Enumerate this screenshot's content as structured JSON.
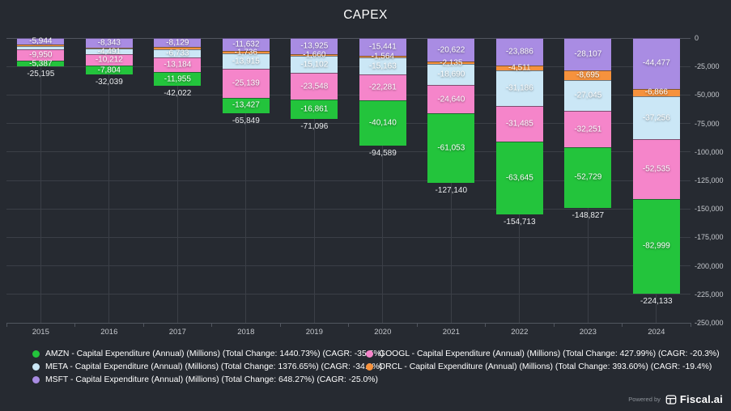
{
  "title": "CAPEX",
  "colors": {
    "background": "#262a31",
    "grid": "#3b3f47",
    "axis": "#51565f",
    "tick_text": "#c6c9ce",
    "segment_text": "#ffffff",
    "total_text": "#e9ebed"
  },
  "chart_data": {
    "type": "bar",
    "stacked": true,
    "direction": "negative-down",
    "title": "CAPEX",
    "xlabel": "",
    "ylabel": "",
    "grid": true,
    "legend_position": "bottom",
    "categories": [
      "2015",
      "2016",
      "2017",
      "2018",
      "2019",
      "2020",
      "2021",
      "2022",
      "2023",
      "2024"
    ],
    "series": [
      {
        "name": "MSFT",
        "color": "#a98ce3",
        "values": [
          -5944,
          -8343,
          -8129,
          -11632,
          -13925,
          -15441,
          -20622,
          -23886,
          -28107,
          -44477
        ],
        "labels": [
          "-5,944",
          "-8,343",
          "-8,129",
          "-11,632",
          "-13,925",
          "-15,441",
          "-20,622",
          "-23,886",
          "-28,107",
          "-44,477"
        ]
      },
      {
        "name": "ORCL",
        "color": "#f6923d",
        "values": [
          -1391,
          -1189,
          -2021,
          -1736,
          -1660,
          -1564,
          -2135,
          -4511,
          -8695,
          -6866
        ],
        "labels": [
          "",
          "",
          "",
          "-1,736",
          "-1,660",
          "-1,564",
          "-2,135",
          "-4,511",
          "-8,695",
          "-6,866"
        ]
      },
      {
        "name": "META",
        "color": "#cbe7f6",
        "values": [
          -2523,
          -4491,
          -6733,
          -13915,
          -15102,
          -15163,
          -18690,
          -31186,
          -27045,
          -37256
        ],
        "labels": [
          "",
          "-4,491",
          "-6,733",
          "-13,915",
          "-15,102",
          "-15,163",
          "-18,690",
          "-31,186",
          "-27,045",
          "-37,256"
        ]
      },
      {
        "name": "GOOGL",
        "color": "#f585ca",
        "values": [
          -9950,
          -10212,
          -13184,
          -25139,
          -23548,
          -22281,
          -24640,
          -31485,
          -32251,
          -52535
        ],
        "labels": [
          "-9,950",
          "-10,212",
          "-13,184",
          "-25,139",
          "-23,548",
          "-22,281",
          "-24,640",
          "-31,485",
          "-32,251",
          "-52,535"
        ]
      },
      {
        "name": "AMZN",
        "color": "#23c43c",
        "values": [
          -5387,
          -7804,
          -11955,
          -13427,
          -16861,
          -40140,
          -61053,
          -63645,
          -52729,
          -82999
        ],
        "labels": [
          "-5,387",
          "-7,804",
          "-11,955",
          "-13,427",
          "-16,861",
          "-40,140",
          "-61,053",
          "-63,645",
          "-52,729",
          "-82,999"
        ]
      }
    ],
    "totals": {
      "values": [
        -25195,
        -32039,
        -42022,
        -65849,
        -71096,
        -94589,
        -127140,
        -154713,
        -148827,
        -224133
      ],
      "labels": [
        "-25,195",
        "-32,039",
        "-42,022",
        "-65,849",
        "-71,096",
        "-94,589",
        "-127,140",
        "-154,713",
        "-148,827",
        "-224,133"
      ]
    },
    "ylim": [
      0,
      -250000
    ],
    "yticks": [
      0,
      -25000,
      -50000,
      -75000,
      -100000,
      -125000,
      -150000,
      -175000,
      -200000,
      -225000,
      -250000
    ],
    "ytick_labels": [
      "0",
      "-25,000",
      "-50,000",
      "-75,000",
      "-100,000",
      "-125,000",
      "-150,000",
      "-175,000",
      "-200,000",
      "-225,000",
      "-250,000"
    ]
  },
  "legend": {
    "left": [
      {
        "series": "AMZN",
        "color": "#23c43c",
        "label": "AMZN - Capital Expenditure (Annual) (Millions) (Total Change: 1440.73%) (CAGR: -35.5%)"
      },
      {
        "series": "META",
        "color": "#cbe7f6",
        "label": "META - Capital Expenditure (Annual) (Millions) (Total Change: 1376.65%) (CAGR: -34.8%)"
      },
      {
        "series": "MSFT",
        "color": "#a98ce3",
        "label": "MSFT - Capital Expenditure (Annual) (Millions) (Total Change: 648.27%) (CAGR: -25.0%)"
      }
    ],
    "right": [
      {
        "series": "GOOGL",
        "color": "#f585ca",
        "label": "GOOGL - Capital Expenditure (Annual) (Millions) (Total Change: 427.99%) (CAGR: -20.3%)"
      },
      {
        "series": "ORCL",
        "color": "#f6923d",
        "label": "ORCL - Capital Expenditure (Annual) (Millions) (Total Change: 393.60%) (CAGR: -19.4%)"
      }
    ]
  },
  "footer": {
    "powered_by": "Powered by",
    "brand": "Fiscal.ai"
  }
}
